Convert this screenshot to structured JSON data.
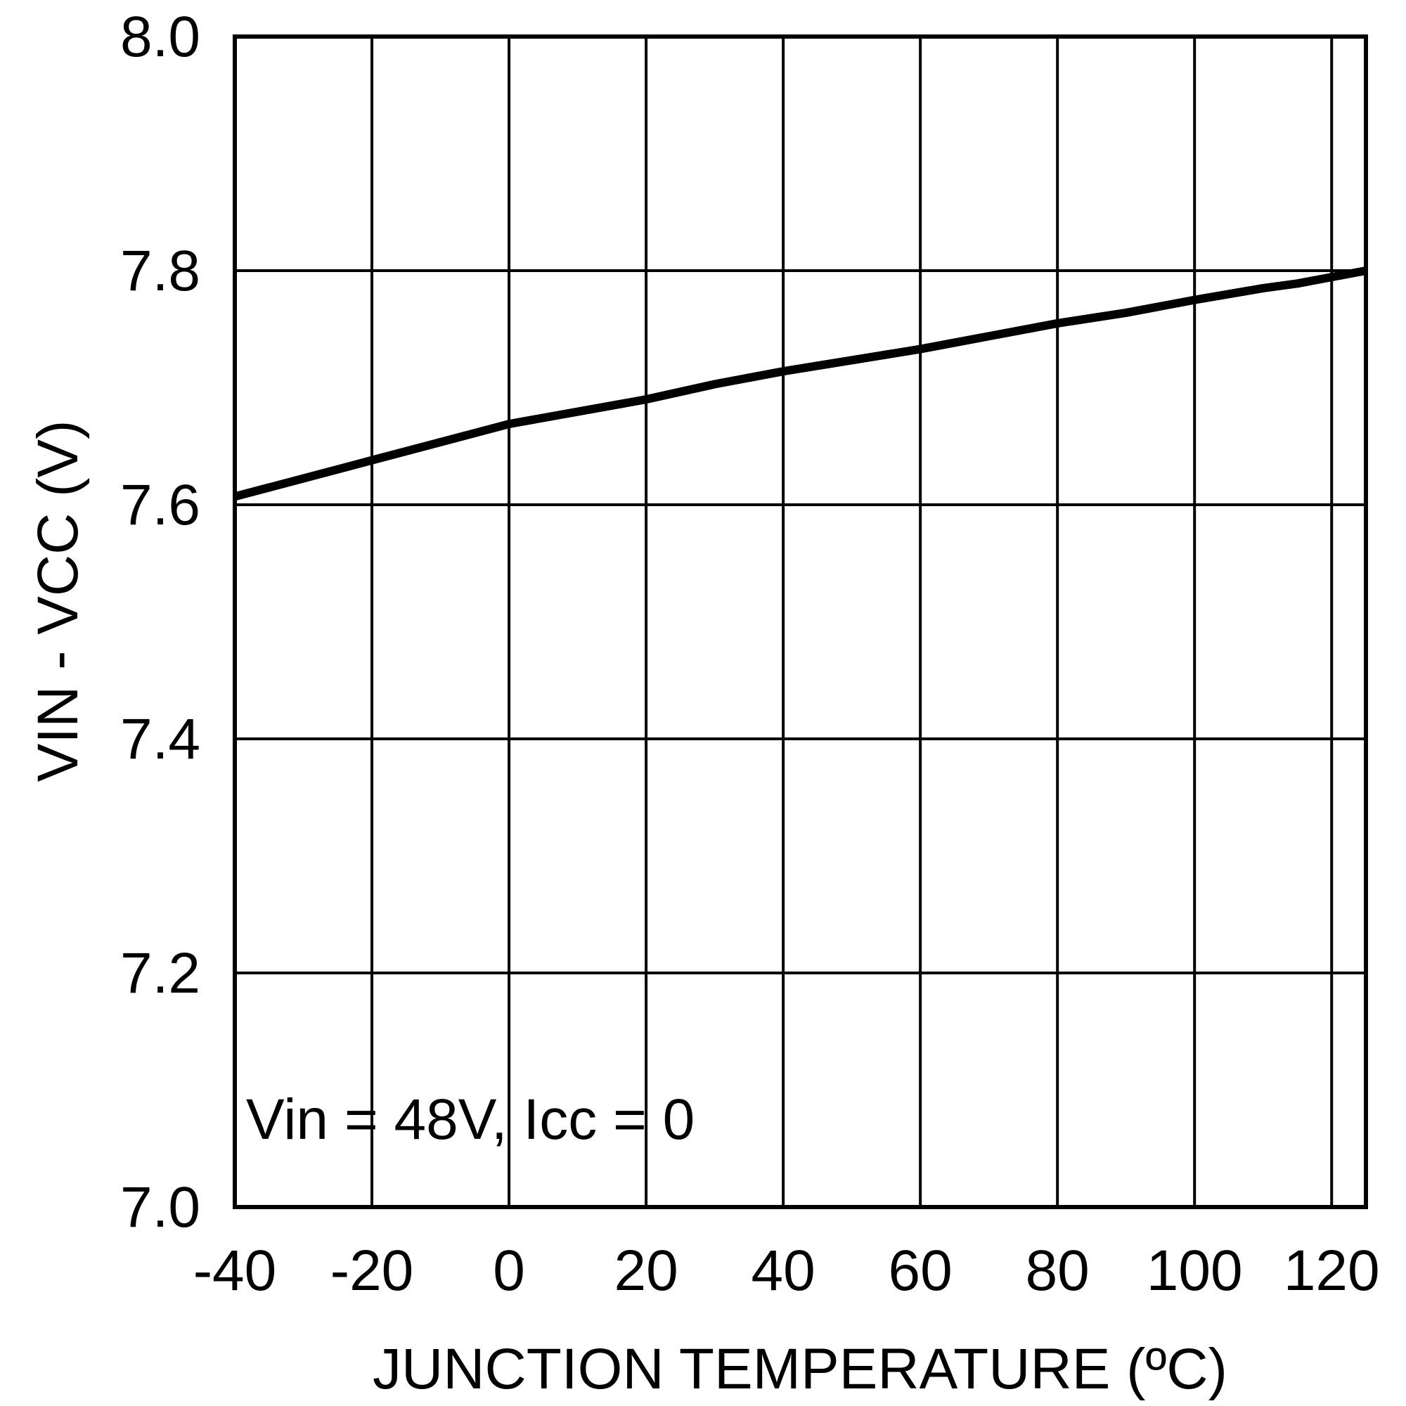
{
  "chart_data": {
    "type": "line",
    "title": "",
    "xlabel": "JUNCTION TEMPERATURE (ºC)",
    "ylabel": "VIN - VCC (V)",
    "xlim": [
      -40,
      125
    ],
    "ylim": [
      7.0,
      8.0
    ],
    "x_ticks": [
      -40,
      -20,
      0,
      20,
      40,
      60,
      80,
      100,
      120
    ],
    "x_tick_labels": [
      "-40",
      "-20",
      "0",
      "20",
      "40",
      "60",
      "80",
      "100",
      "120"
    ],
    "y_ticks": [
      7.0,
      7.2,
      7.4,
      7.6,
      7.8,
      8.0
    ],
    "y_tick_labels": [
      "7.0",
      "7.2",
      "7.4",
      "7.6",
      "7.8",
      "8.0"
    ],
    "grid": true,
    "annotation": "Vin = 48V, Icc = 0",
    "line_color": "#000000",
    "series": [
      {
        "x": [
          -40,
          -20,
          0,
          20,
          30,
          40,
          60,
          80,
          90,
          100,
          110,
          115,
          125
        ],
        "y": [
          7.607,
          7.638,
          7.669,
          7.69,
          7.703,
          7.714,
          7.733,
          7.755,
          7.764,
          7.775,
          7.785,
          7.789,
          7.8
        ]
      }
    ]
  }
}
